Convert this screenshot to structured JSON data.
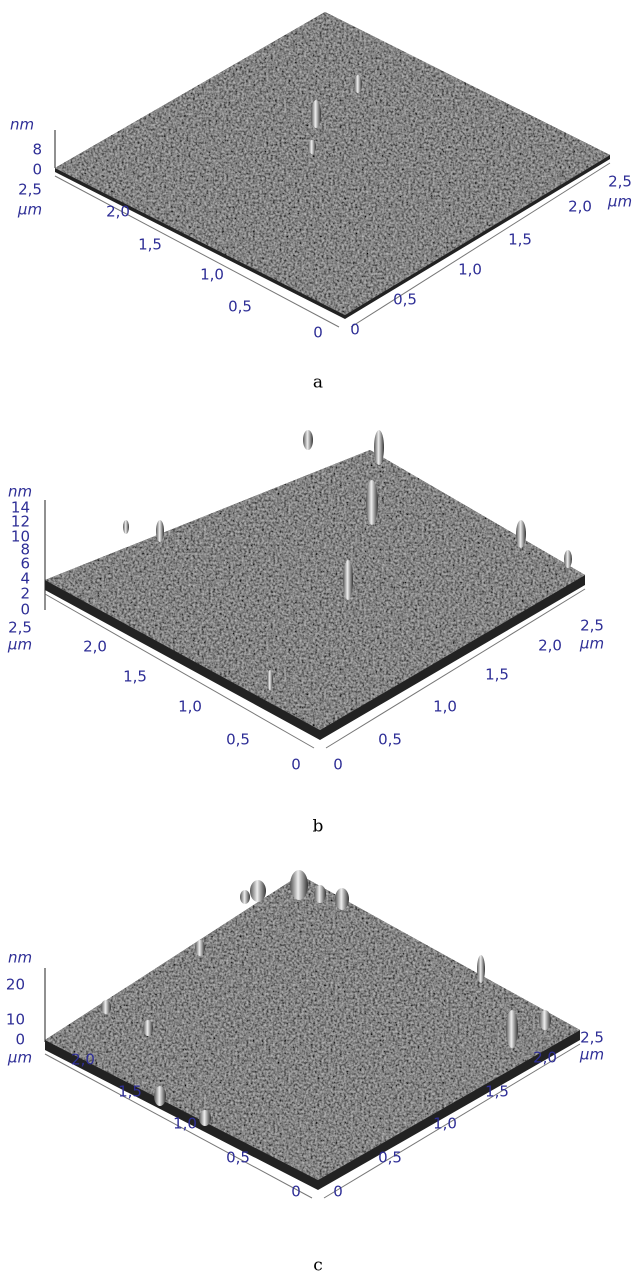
{
  "panels": [
    {
      "caption": "a",
      "z_unit": "nm",
      "z_ticks": [
        "8",
        "0"
      ],
      "left_unit": "µm",
      "left_ticks": [
        "2,5",
        "2,0",
        "1,5",
        "1,0",
        "0,5",
        "0"
      ],
      "right_ticks": [
        "0",
        "0,5",
        "1,0",
        "1,5",
        "2,0",
        "2,5"
      ],
      "right_unit": "µm"
    },
    {
      "caption": "b",
      "z_unit": "nm",
      "z_ticks": [
        "14",
        "12",
        "10",
        "8",
        "6",
        "4",
        "2",
        "0"
      ],
      "left_unit": "µm",
      "left_ticks": [
        "2,5",
        "2,0",
        "1,5",
        "1,0",
        "0,5",
        "0"
      ],
      "right_ticks": [
        "0",
        "0,5",
        "1,0",
        "1,5",
        "2,0",
        "2,5"
      ],
      "right_unit": "µm"
    },
    {
      "caption": "c",
      "z_unit": "nm",
      "z_ticks": [
        "20",
        "10",
        "0"
      ],
      "left_unit": "µm",
      "left_ticks": [
        "2,0",
        "1,5",
        "1,0",
        "0,5",
        "0"
      ],
      "right_ticks": [
        "0",
        "0,5",
        "1,0",
        "1,5",
        "2,0",
        "2,5"
      ],
      "right_unit": "µm"
    }
  ]
}
